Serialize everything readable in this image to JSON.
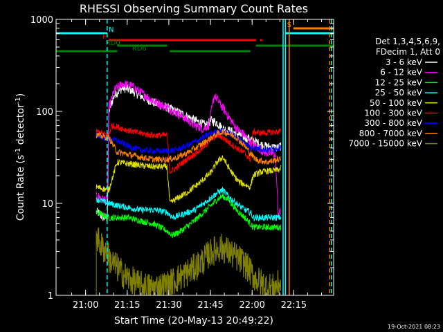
{
  "chart_data": {
    "type": "line",
    "title": "RHESSI Observing Summary Count Rates",
    "xlabel": "Start Time (20-May-13 20:49:22)",
    "ylabel_main": "Count Rate (s",
    "ylabel_sup1": "-1",
    "ylabel_mid": " detector",
    "ylabel_sup2": "-1",
    "ylabel_end": ")",
    "y_scale": "log",
    "ylim": [
      1,
      1000
    ],
    "xlim_minutes_after_start": [
      0,
      100
    ],
    "x_tick_labels": [
      "21:00",
      "21:15",
      "21:30",
      "21:45",
      "22:00",
      "22:15"
    ],
    "x_tick_minutes": [
      10.63,
      25.63,
      40.63,
      55.63,
      70.63,
      85.63
    ],
    "y_tick_labels": [
      "1",
      "10",
      "100",
      "1000"
    ],
    "y_tick_values": [
      1,
      10,
      100,
      1000
    ],
    "footer_date": "19-Oct-2021 08:23",
    "legend": {
      "placement": "right",
      "header1": "Det 1,3,4,5,6,9,",
      "header2": "FDecim 1, Att 0",
      "entries": [
        {
          "label": "3 - 6 keV",
          "color": "#ffffff"
        },
        {
          "label": "6 - 12 keV",
          "color": "#ff00ff"
        },
        {
          "label": "12 - 25 keV",
          "color": "#00ff00"
        },
        {
          "label": "25 - 50 keV",
          "color": "#00ffff"
        },
        {
          "label": "50 - 100 keV",
          "color": "#e0e000"
        },
        {
          "label": "100 - 300 keV",
          "color": "#ff0000"
        },
        {
          "label": "300 - 800 keV",
          "color": "#0000ff"
        },
        {
          "label": "800 - 7000 keV",
          "color": "#ff8000"
        },
        {
          "label": "7000 - 15000 keV",
          "color": "#808000"
        }
      ]
    },
    "flags": [
      {
        "label": "N",
        "color": "#00ffff",
        "segments": [
          [
            0,
            18.4
          ],
          [
            82.5,
            100
          ]
        ],
        "level_rank": 1
      },
      {
        "label": "F",
        "color": "#ff0000",
        "segments": [
          [
            19,
            72
          ],
          [
            73.5,
            74.2
          ]
        ],
        "level_rank": 2
      },
      {
        "label": "S",
        "color": "#ff8000",
        "segments": [
          [
            85.5,
            100
          ]
        ],
        "level_rank": 0
      },
      {
        "label": "RD0",
        "color": "#008000",
        "segments": [
          [
            22,
            40
          ],
          [
            72,
            100
          ]
        ],
        "level_rank": 3
      },
      {
        "label": "RD6",
        "color": "#008000",
        "segments": [
          [
            0,
            22
          ],
          [
            41,
            70
          ]
        ],
        "level_rank": 4
      }
    ],
    "vertical_markers": [
      {
        "minute": 18.4,
        "color": "#00ffff",
        "style": "dashed"
      },
      {
        "minute": 81.8,
        "color": "#00ffff",
        "style": "solid"
      },
      {
        "minute": 82.6,
        "color": "#00ffff",
        "style": "solid"
      },
      {
        "minute": 84.0,
        "color": "#ff8000",
        "style": "solid"
      },
      {
        "minute": 98.6,
        "color": "#ff8000",
        "style": "dashed"
      },
      {
        "minute": 99.2,
        "color": "#00ffff",
        "style": "dashed"
      }
    ],
    "series": [
      {
        "name": "3 - 6 keV",
        "color": "#ffffff",
        "x": [
          14.5,
          15,
          17,
          18.5,
          19,
          21,
          24,
          27,
          30,
          35,
          40,
          45,
          50,
          52,
          54,
          56,
          58,
          60,
          65,
          68,
          70,
          73,
          75,
          80,
          81
        ],
        "y": [
          8,
          8,
          7,
          7,
          100,
          150,
          180,
          170,
          150,
          125,
          110,
          95,
          80,
          75,
          70,
          80,
          75,
          65,
          58,
          52,
          50,
          45,
          42,
          40,
          42
        ]
      },
      {
        "name": "6 - 12 keV",
        "color": "#ff00ff",
        "x": [
          14.5,
          15,
          17,
          18.5,
          19,
          21,
          24,
          27,
          30,
          35,
          40,
          45,
          50,
          53,
          55,
          57,
          60,
          63,
          65,
          68,
          70,
          73,
          75,
          79,
          80,
          81
        ],
        "y": [
          12,
          12,
          11,
          11,
          110,
          170,
          200,
          190,
          165,
          130,
          110,
          90,
          70,
          65,
          70,
          150,
          110,
          80,
          65,
          55,
          45,
          40,
          36,
          34,
          8,
          8
        ]
      },
      {
        "name": "12 - 25 keV",
        "color": "#00ff00",
        "x": [
          14.5,
          15,
          18.5,
          19,
          22,
          26,
          30,
          35,
          40,
          42,
          45,
          50,
          55,
          58,
          60,
          62,
          65,
          68,
          70,
          71,
          75,
          80,
          81
        ],
        "y": [
          8,
          8,
          7,
          7,
          7,
          7,
          6.5,
          6,
          5,
          4.5,
          5,
          6.5,
          9,
          11,
          12,
          11,
          8.5,
          7,
          6,
          5.5,
          5.5,
          5.5,
          5.5
        ]
      },
      {
        "name": "25 - 50 keV",
        "color": "#00ffff",
        "x": [
          14.5,
          15,
          18.5,
          19,
          22,
          26,
          30,
          35,
          40,
          42,
          45,
          50,
          55,
          58,
          60,
          62,
          65,
          68,
          70,
          71,
          75,
          80,
          81
        ],
        "y": [
          11,
          11,
          10,
          10,
          9.5,
          9,
          8.5,
          8.5,
          8,
          7,
          7.5,
          8.5,
          11,
          13,
          14,
          12,
          10,
          8.5,
          8,
          7,
          7,
          7,
          7
        ]
      },
      {
        "name": "50 - 100 keV",
        "color": "#e0e000",
        "x": [
          14.5,
          15,
          18.5,
          19,
          22,
          26,
          30,
          35,
          40,
          41,
          43,
          47,
          52,
          56,
          58,
          60,
          62,
          64,
          66,
          68,
          70,
          71,
          74,
          80,
          81
        ],
        "y": [
          15,
          15,
          14,
          14,
          28,
          27,
          26,
          25,
          25,
          10,
          11,
          13,
          17,
          22,
          28,
          32,
          25,
          20,
          17,
          16,
          15,
          20,
          22,
          23,
          24
        ]
      },
      {
        "name": "100 - 300 keV",
        "color": "#ff0000",
        "x": [
          14.5,
          15,
          18.5,
          19,
          20,
          22,
          26,
          30,
          35,
          40,
          41,
          43,
          47,
          52,
          56,
          58,
          60,
          64,
          68,
          70,
          71,
          74,
          80,
          81
        ],
        "y": [
          60,
          60,
          55,
          55,
          70,
          68,
          62,
          58,
          55,
          55,
          22,
          24,
          30,
          38,
          50,
          55,
          52,
          42,
          35,
          30,
          60,
          58,
          60,
          62
        ]
      },
      {
        "name": "300 - 800 keV",
        "color": "#0000ff",
        "x": [
          14.5,
          15,
          18.5,
          19,
          20,
          22,
          26,
          30,
          35,
          40,
          43,
          47,
          52,
          56,
          60,
          64,
          68,
          70,
          72,
          76,
          80,
          81
        ],
        "y": [
          55,
          55,
          50,
          50,
          50,
          48,
          42,
          38,
          37,
          37,
          38,
          42,
          50,
          58,
          62,
          55,
          45,
          40,
          40,
          38,
          40,
          42
        ]
      },
      {
        "name": "800 - 7000 keV",
        "color": "#ff8000",
        "x": [
          14.5,
          15,
          18.5,
          19,
          22,
          26,
          30,
          35,
          40,
          43,
          47,
          52,
          56,
          58,
          60,
          62,
          65,
          68,
          70,
          72,
          76,
          80,
          81
        ],
        "y": [
          55,
          55,
          52,
          52,
          36,
          34,
          32,
          30,
          30,
          31,
          35,
          43,
          52,
          57,
          60,
          58,
          52,
          42,
          35,
          30,
          28,
          30,
          30
        ]
      },
      {
        "name": "7000 - 15000 keV",
        "color": "#808000",
        "x": [
          14.5,
          15,
          17,
          18.5,
          19,
          22,
          25,
          28,
          30,
          35,
          40,
          45,
          50,
          53,
          55,
          58,
          60,
          62,
          65,
          68,
          70,
          72,
          75,
          78,
          80,
          81
        ],
        "y": [
          5,
          4,
          3.2,
          3,
          2.5,
          2,
          1.6,
          1.4,
          1.3,
          1.2,
          1.3,
          1.6,
          2,
          2.4,
          2.8,
          3.2,
          3.3,
          3,
          2.6,
          2.2,
          1.8,
          1.5,
          1.3,
          1.2,
          1.3,
          1.4
        ]
      }
    ]
  }
}
